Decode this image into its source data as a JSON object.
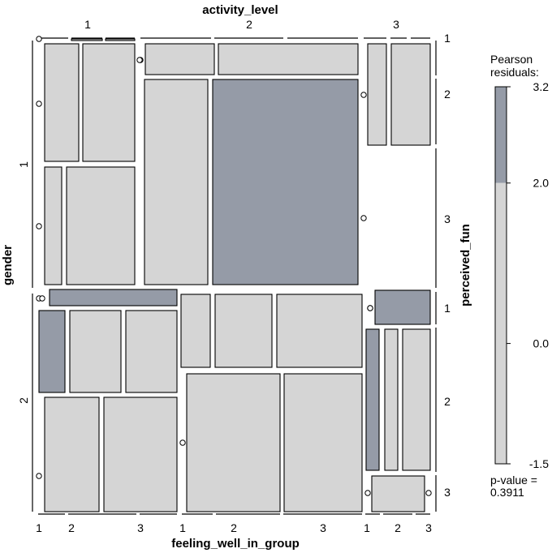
{
  "chart_data": {
    "type": "mosaic",
    "variables": {
      "top": {
        "name": "activity_level",
        "levels": [
          "1",
          "2",
          "3"
        ]
      },
      "bottom": {
        "name": "feeling_well_in_group",
        "levels": [
          "1",
          "2",
          "3"
        ]
      },
      "left": {
        "name": "gender",
        "levels": [
          "1",
          "2"
        ]
      },
      "right": {
        "name": "perceived_fun",
        "levels": [
          "1",
          "2",
          "3"
        ]
      }
    },
    "colors": {
      "neutral": "#d5d5d5",
      "positive": "#959ba7",
      "border": "#000000"
    },
    "legend": {
      "title_line1": "Pearson",
      "title_line2": "residuals:",
      "ticks": [
        "3.2",
        "2.0",
        "0.0",
        "-1.5"
      ],
      "range": [
        -1.5,
        3.2
      ],
      "shaded_above": 2.0,
      "p_value_label": "p-value =",
      "p_value": "0.3911"
    },
    "cells": [
      {
        "gender": "1",
        "activity_level": "1",
        "feeling_well_in_group": "1",
        "perceived_fun": "1",
        "zero": true,
        "shade": "neutral"
      },
      {
        "gender": "1",
        "activity_level": "1",
        "feeling_well_in_group": "2",
        "perceived_fun": "1",
        "shade": "neutral"
      },
      {
        "gender": "1",
        "activity_level": "1",
        "feeling_well_in_group": "3",
        "perceived_fun": "1",
        "shade": "neutral"
      },
      {
        "gender": "1",
        "activity_level": "1",
        "feeling_well_in_group": "1",
        "perceived_fun": "2",
        "zero": true,
        "shade": "neutral"
      },
      {
        "gender": "1",
        "activity_level": "1",
        "feeling_well_in_group": "2",
        "perceived_fun": "2",
        "shade": "neutral"
      },
      {
        "gender": "1",
        "activity_level": "1",
        "feeling_well_in_group": "3",
        "perceived_fun": "2",
        "shade": "neutral"
      },
      {
        "gender": "1",
        "activity_level": "1",
        "feeling_well_in_group": "1",
        "perceived_fun": "3",
        "zero": true,
        "shade": "neutral"
      },
      {
        "gender": "1",
        "activity_level": "1",
        "feeling_well_in_group": "2",
        "perceived_fun": "3",
        "shade": "neutral"
      },
      {
        "gender": "1",
        "activity_level": "1",
        "feeling_well_in_group": "3",
        "perceived_fun": "3",
        "shade": "neutral"
      },
      {
        "gender": "1",
        "activity_level": "2",
        "feeling_well_in_group": "1",
        "perceived_fun": "1",
        "zero": true,
        "shade": "neutral"
      },
      {
        "gender": "1",
        "activity_level": "2",
        "feeling_well_in_group": "2",
        "perceived_fun": "1",
        "shade": "neutral"
      },
      {
        "gender": "1",
        "activity_level": "2",
        "feeling_well_in_group": "3",
        "perceived_fun": "1",
        "shade": "neutral"
      },
      {
        "gender": "1",
        "activity_level": "2",
        "feeling_well_in_group": "1",
        "perceived_fun": "2",
        "shade": "neutral"
      },
      {
        "gender": "1",
        "activity_level": "2",
        "feeling_well_in_group": "2",
        "perceived_fun": "2",
        "shade": "positive"
      },
      {
        "gender": "1",
        "activity_level": "2",
        "feeling_well_in_group": "3",
        "perceived_fun": "2",
        "zero": true,
        "shade": "neutral"
      },
      {
        "gender": "1",
        "activity_level": "3",
        "feeling_well_in_group": "1",
        "perceived_fun": "1",
        "shade": "neutral"
      },
      {
        "gender": "1",
        "activity_level": "3",
        "feeling_well_in_group": "2",
        "perceived_fun": "1",
        "shade": "neutral"
      },
      {
        "gender": "1",
        "activity_level": "3",
        "feeling_well_in_group": "3",
        "perceived_fun": "1",
        "zero": true,
        "shade": "neutral"
      },
      {
        "gender": "2",
        "activity_level": "1",
        "feeling_well_in_group": "1",
        "perceived_fun": "1",
        "zero": true,
        "shade": "neutral"
      },
      {
        "gender": "2",
        "activity_level": "1",
        "feeling_well_in_group": "2",
        "perceived_fun": "1",
        "shade": "positive"
      },
      {
        "gender": "2",
        "activity_level": "1",
        "feeling_well_in_group": "1",
        "perceived_fun": "2",
        "shade": "positive"
      },
      {
        "gender": "2",
        "activity_level": "1",
        "feeling_well_in_group": "2",
        "perceived_fun": "2",
        "shade": "neutral"
      },
      {
        "gender": "2",
        "activity_level": "1",
        "feeling_well_in_group": "3",
        "perceived_fun": "2",
        "shade": "neutral"
      },
      {
        "gender": "2",
        "activity_level": "1",
        "feeling_well_in_group": "1",
        "perceived_fun": "3",
        "zero": true,
        "shade": "neutral"
      },
      {
        "gender": "2",
        "activity_level": "1",
        "feeling_well_in_group": "2",
        "perceived_fun": "3",
        "shade": "neutral"
      },
      {
        "gender": "2",
        "activity_level": "1",
        "feeling_well_in_group": "3",
        "perceived_fun": "3",
        "shade": "neutral"
      },
      {
        "gender": "2",
        "activity_level": "2",
        "feeling_well_in_group": "1",
        "perceived_fun": "2",
        "shade": "neutral"
      },
      {
        "gender": "2",
        "activity_level": "2",
        "feeling_well_in_group": "2",
        "perceived_fun": "2",
        "shade": "neutral"
      },
      {
        "gender": "2",
        "activity_level": "2",
        "feeling_well_in_group": "3",
        "perceived_fun": "2",
        "shade": "neutral"
      },
      {
        "gender": "2",
        "activity_level": "2",
        "feeling_well_in_group": "1",
        "perceived_fun": "3",
        "zero": true,
        "shade": "neutral"
      },
      {
        "gender": "2",
        "activity_level": "2",
        "feeling_well_in_group": "2",
        "perceived_fun": "3",
        "shade": "neutral"
      },
      {
        "gender": "2",
        "activity_level": "2",
        "feeling_well_in_group": "3",
        "perceived_fun": "3",
        "shade": "neutral"
      },
      {
        "gender": "2",
        "activity_level": "3",
        "feeling_well_in_group": "1",
        "perceived_fun": "1",
        "zero": true,
        "shade": "neutral"
      },
      {
        "gender": "2",
        "activity_level": "3",
        "feeling_well_in_group": "3",
        "perceived_fun": "1",
        "shade": "positive"
      },
      {
        "gender": "2",
        "activity_level": "3",
        "feeling_well_in_group": "1",
        "perceived_fun": "2",
        "shade": "positive"
      },
      {
        "gender": "2",
        "activity_level": "3",
        "feeling_well_in_group": "2",
        "perceived_fun": "2",
        "shade": "neutral"
      },
      {
        "gender": "2",
        "activity_level": "3",
        "feeling_well_in_group": "3",
        "perceived_fun": "2",
        "shade": "neutral"
      },
      {
        "gender": "2",
        "activity_level": "3",
        "feeling_well_in_group": "1",
        "perceived_fun": "3",
        "zero": true,
        "shade": "neutral"
      },
      {
        "gender": "2",
        "activity_level": "3",
        "feeling_well_in_group": "2",
        "perceived_fun": "3",
        "shade": "neutral"
      },
      {
        "gender": "2",
        "activity_level": "3",
        "feeling_well_in_group": "3",
        "perceived_fun": "3",
        "zero": true,
        "shade": "neutral"
      }
    ]
  }
}
